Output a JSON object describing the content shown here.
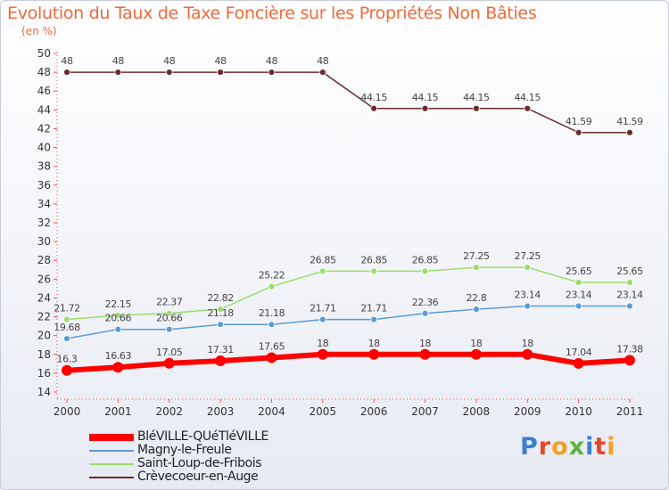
{
  "header": {
    "title": "Evolution du Taux de Taxe Foncière sur les Propriétés Non Bâties",
    "unit": "(en %)"
  },
  "logo": {
    "text": "Proxiti"
  },
  "chart_data": {
    "type": "line",
    "title": "Evolution du Taux de Taxe Foncière sur les Propriétés Non Bâties",
    "ylabel": "(en %)",
    "xlabel": "",
    "ylim": [
      14,
      50
    ],
    "ytick_step": 2,
    "grid": false,
    "legend_position": "bottom-left",
    "categories": [
      "2000",
      "2001",
      "2002",
      "2003",
      "2004",
      "2005",
      "2006",
      "2007",
      "2008",
      "2009",
      "2010",
      "2011"
    ],
    "series": [
      {
        "name": "BléVILLE-QUéTléVILLE",
        "color": "#ff0000",
        "values": [
          16.3,
          16.63,
          17.05,
          17.31,
          17.65,
          18,
          18,
          18,
          18,
          18,
          17.04,
          17.38
        ],
        "labels": [
          "16.3",
          "16.63",
          "17.05",
          "17.31",
          "17.65",
          "18",
          "18",
          "18",
          "18",
          "18",
          "17.04",
          "17.38"
        ]
      },
      {
        "name": "Magny-le-Freule",
        "color": "#5b9bd5",
        "values": [
          19.68,
          20.66,
          20.66,
          21.18,
          21.18,
          21.71,
          21.71,
          22.36,
          22.8,
          23.14,
          23.14,
          23.14
        ],
        "labels": [
          "19.68",
          "20.66",
          "20.66",
          "21.18",
          "21.18",
          "21.71",
          "21.71",
          "22.36",
          "22.8",
          "23.14",
          "23.14",
          "23.14"
        ]
      },
      {
        "name": "Saint-Loup-de-Fribois",
        "color": "#9ddc6c",
        "values": [
          21.72,
          22.15,
          22.37,
          22.82,
          25.22,
          26.85,
          26.85,
          26.85,
          27.25,
          27.25,
          25.65,
          25.65
        ],
        "labels": [
          "21.72",
          "22.15",
          "22.37",
          "22.82",
          "25.22",
          "26.85",
          "26.85",
          "26.85",
          "27.25",
          "27.25",
          "25.65",
          "25.65"
        ]
      },
      {
        "name": "Crèvecoeur-en-Auge",
        "color": "#6b2c2c",
        "values": [
          48,
          48,
          48,
          48,
          48,
          48,
          44.15,
          44.15,
          44.15,
          44.15,
          41.59,
          41.59
        ],
        "labels": [
          "48",
          "48",
          "48",
          "48",
          "48",
          "48",
          "44.15",
          "44.15",
          "44.15",
          "44.15",
          "41.59",
          "41.59"
        ]
      }
    ]
  }
}
